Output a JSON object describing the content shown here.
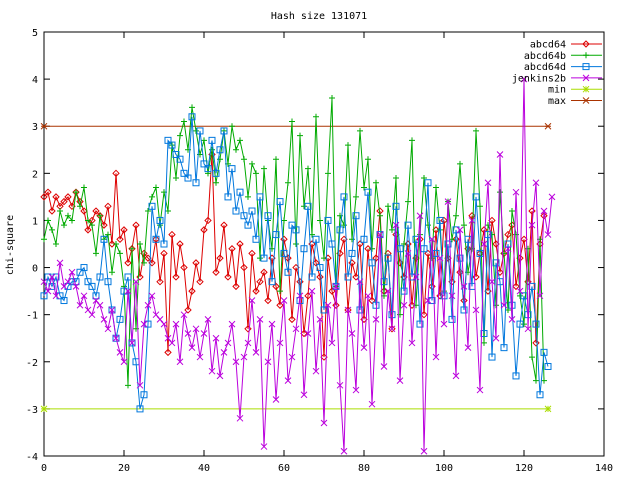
{
  "chart_data": {
    "type": "line",
    "title": "Hash size 131071",
    "ylabel": "chi-square",
    "xlabel": "",
    "xlim": [
      0,
      140
    ],
    "ylim": [
      -4,
      5
    ],
    "xticks": [
      0,
      20,
      40,
      60,
      80,
      100,
      120,
      140
    ],
    "yticks": [
      -4,
      -3,
      -2,
      -1,
      0,
      1,
      2,
      3,
      4,
      5
    ],
    "grid": false,
    "legend_position": "top-right",
    "series": [
      {
        "name": "abcd64",
        "color": "#dd0000",
        "marker": "diamond",
        "values": [
          1.5,
          1.6,
          1.2,
          1.5,
          1.3,
          1.4,
          1.5,
          1.3,
          1.6,
          1.4,
          1.2,
          0.8,
          1.0,
          1.2,
          1.1,
          0.9,
          1.3,
          0.5,
          2.0,
          0.6,
          0.8,
          0.1,
          0.4,
          0.9,
          -0.2,
          0.3,
          0.2,
          0.1,
          0.6,
          -0.3,
          0.3,
          -1.8,
          0.7,
          -0.2,
          0.5,
          0.0,
          -0.9,
          -0.5,
          0.1,
          -0.3,
          0.8,
          1.0,
          2.4,
          -0.1,
          0.2,
          0.9,
          -0.2,
          0.4,
          -0.4,
          0.5,
          0.0,
          -1.3,
          0.3,
          -0.5,
          -0.3,
          -0.1,
          -0.7,
          0.2,
          -0.4,
          -0.8,
          0.6,
          0.2,
          -1.1,
          0.0,
          -0.3,
          -1.4,
          -0.6,
          0.5,
          0.1,
          -0.2,
          -1.9,
          0.2,
          -0.5,
          -0.8,
          0.3,
          0.6,
          -0.9,
          0.1,
          -0.2,
          0.5,
          -1.1,
          0.4,
          -0.7,
          0.2,
          1.2,
          -0.5,
          0.3,
          -1.3,
          0.7,
          0.1,
          -0.2,
          0.5,
          -0.8,
          0.2,
          0.6,
          -1.0,
          0.3,
          -0.4,
          0.8,
          -0.6,
          1.0,
          0.2,
          -0.3,
          0.6,
          -0.1,
          -0.7,
          0.4,
          1.1,
          -0.2,
          0.3,
          0.8,
          -0.5,
          1.0,
          0.5,
          -0.1,
          0.3,
          0.7,
          0.9,
          -0.4,
          0.2,
          0.6,
          -0.3,
          1.2,
          -1.6,
          0.5,
          1.1
        ]
      },
      {
        "name": "abcd64b",
        "color": "#00aa00",
        "marker": "plus",
        "values": [
          0.6,
          1.0,
          0.8,
          0.5,
          1.2,
          0.9,
          1.1,
          1.0,
          1.6,
          1.3,
          1.7,
          1.0,
          0.9,
          0.3,
          1.1,
          0.6,
          0.7,
          -0.1,
          0.5,
          0.3,
          -0.4,
          -2.5,
          0.4,
          -1.3,
          0.5,
          0.1,
          1.2,
          1.5,
          1.7,
          0.9,
          1.6,
          1.2,
          2.6,
          1.9,
          2.8,
          3.1,
          2.5,
          3.4,
          2.9,
          2.4,
          2.7,
          2.0,
          2.5,
          1.8,
          2.3,
          2.9,
          2.2,
          3.0,
          2.5,
          2.7,
          2.3,
          1.5,
          2.2,
          2.0,
          0.2,
          2.1,
          1.0,
          0.4,
          2.3,
          -0.5,
          1.0,
          1.8,
          3.1,
          0.5,
          2.8,
          1.3,
          2.1,
          0.7,
          3.2,
          1.0,
          0.2,
          2.0,
          3.6,
          -0.4,
          1.1,
          0.9,
          2.6,
          0.6,
          1.5,
          2.9,
          1.7,
          2.3,
          0.4,
          1.8,
          1.1,
          -0.6,
          1.3,
          0.8,
          1.9,
          -1.0,
          0.5,
          1.4,
          2.7,
          -0.8,
          0.7,
          1.9,
          0.9,
          0.2,
          1.7,
          0.8,
          -0.5,
          1.4,
          0.6,
          1.1,
          2.2,
          0.9,
          -0.1,
          0.4,
          2.9,
          1.3,
          -1.6,
          0.9,
          0.7,
          -0.8,
          1.6,
          0.3,
          -0.9,
          1.2,
          0.7,
          -0.6,
          -1.2,
          0.4,
          -1.9,
          -2.4,
          0.6,
          -2.4
        ]
      },
      {
        "name": "abcd64d",
        "color": "#0077dd",
        "marker": "square",
        "values": [
          -0.6,
          -0.2,
          -0.4,
          -0.2,
          -0.6,
          -0.7,
          -0.4,
          -0.3,
          -0.3,
          -0.1,
          0.0,
          -0.3,
          -0.4,
          -0.6,
          -0.2,
          0.6,
          -0.3,
          -0.9,
          -1.5,
          -1.1,
          -0.5,
          -0.2,
          -1.6,
          -2.0,
          -3.0,
          -2.7,
          -1.2,
          1.3,
          0.6,
          1.0,
          0.5,
          2.7,
          2.6,
          2.4,
          2.3,
          2.0,
          1.9,
          3.2,
          1.8,
          2.9,
          2.2,
          2.1,
          2.7,
          2.0,
          2.5,
          2.9,
          1.5,
          2.1,
          1.2,
          1.6,
          1.1,
          0.9,
          1.2,
          0.6,
          1.5,
          0.2,
          1.1,
          -0.3,
          0.7,
          1.4,
          0.3,
          -0.1,
          0.9,
          0.8,
          -0.7,
          0.4,
          1.3,
          -0.2,
          0.6,
          0.0,
          -0.9,
          1.0,
          0.5,
          -0.4,
          0.8,
          1.5,
          -0.2,
          0.3,
          1.1,
          -0.9,
          0.6,
          1.6,
          0.1,
          -0.8,
          0.7,
          -0.3,
          0.2,
          -1.0,
          1.3,
          0.4,
          -0.5,
          0.9,
          -0.2,
          0.6,
          -1.2,
          0.4,
          1.8,
          -0.7,
          0.3,
          1.0,
          -0.6,
          0.5,
          -1.1,
          0.8,
          0.2,
          -0.9,
          0.6,
          -0.4,
          1.5,
          0.3,
          -1.4,
          0.7,
          -1.9,
          0.1,
          -0.3,
          -1.7,
          0.5,
          -0.8,
          -2.3,
          -1.2,
          -0.6,
          -1.0,
          -0.4,
          -1.2,
          -2.7,
          -1.8,
          -2.1
        ]
      },
      {
        "name": "jenkins2b",
        "color": "#bb00dd",
        "marker": "x",
        "values": [
          -0.3,
          -0.5,
          -0.2,
          -0.6,
          0.1,
          -0.4,
          -0.3,
          -0.1,
          -0.4,
          -0.8,
          -0.6,
          -0.9,
          -1.0,
          -0.7,
          -0.8,
          -1.1,
          -1.3,
          -0.9,
          -1.5,
          -1.8,
          -2.0,
          -0.5,
          -1.6,
          -0.3,
          -2.5,
          -1.2,
          -0.8,
          -0.6,
          -1.0,
          -1.1,
          -1.2,
          -1.5,
          -1.6,
          -1.2,
          -2.0,
          -1.0,
          -1.4,
          -1.7,
          -1.3,
          -1.9,
          -1.4,
          -1.1,
          -2.2,
          -1.5,
          -2.3,
          -1.8,
          -1.6,
          -1.2,
          -2.0,
          -3.2,
          -1.9,
          -1.6,
          -0.7,
          -1.8,
          -1.1,
          -3.8,
          -2.0,
          -1.2,
          -2.8,
          -1.6,
          -0.7,
          -2.4,
          -1.9,
          -1.3,
          -0.6,
          -2.7,
          -1.4,
          -0.5,
          -2.2,
          -1.1,
          -3.3,
          -0.8,
          -1.6,
          -0.4,
          -2.5,
          -3.9,
          -0.9,
          -1.4,
          -2.6,
          -0.3,
          -1.7,
          -0.6,
          -2.9,
          -1.1,
          0.7,
          -2.1,
          -0.5,
          -1.3,
          0.9,
          -2.4,
          -0.8,
          0.3,
          -1.6,
          -0.2,
          1.1,
          -3.9,
          -0.7,
          0.6,
          -1.9,
          0.2,
          -1.2,
          1.4,
          -0.6,
          -2.3,
          0.8,
          -0.4,
          -1.7,
          1.0,
          -0.9,
          -2.6,
          0.5,
          1.8,
          -0.3,
          -1.5,
          2.4,
          -0.8,
          0.4,
          -1.1,
          1.6,
          -0.5,
          4.0,
          -1.3,
          0.9,
          1.8,
          -0.6,
          1.2,
          0.7,
          1.5
        ]
      },
      {
        "name": "min",
        "color": "#aadd00",
        "marker": "star",
        "flat": true,
        "y": -3,
        "x_range": [
          0,
          126
        ]
      },
      {
        "name": "max",
        "color": "#aa3300",
        "marker": "asterisk",
        "flat": true,
        "y": 3,
        "x_range": [
          0,
          126
        ]
      }
    ]
  }
}
